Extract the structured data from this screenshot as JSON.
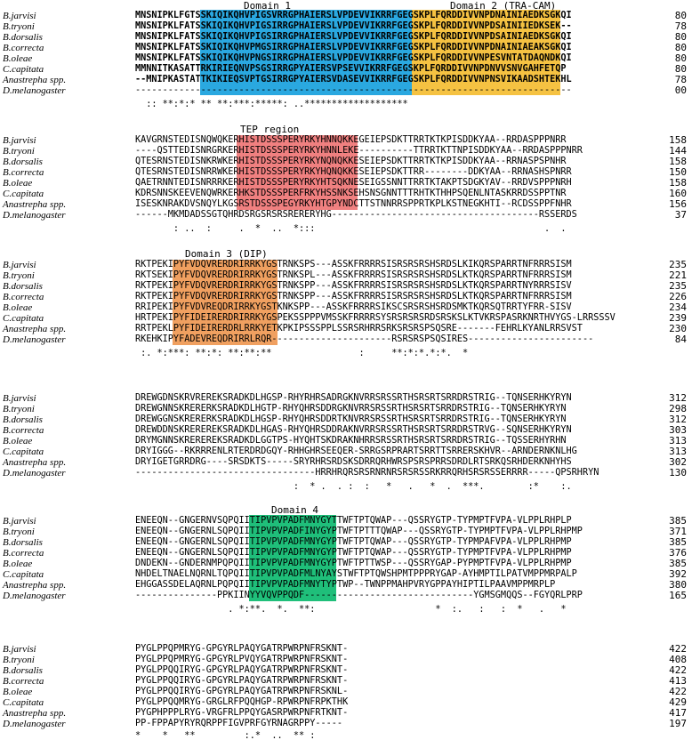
{
  "species": [
    "B.jarvisi",
    "B.tryoni",
    "B.dorsalis",
    "B.correcta",
    "B.oleae",
    "C.capitata",
    "Anastrepha spp.",
    "D.melanogaster"
  ],
  "colors": {
    "domain1": "#2aa8e0",
    "domain2": "#f5c242",
    "tep": "#f08080",
    "domain3": "#f0a060",
    "domain4": "#1fbf7a",
    "serine": "#e01010",
    "proline": "#1e6fd0"
  },
  "labels": {
    "domain1": "Domain 1",
    "domain2": "Domain 2 (TRA-CAM)",
    "tep": "TEP region",
    "domain3": "Domain 3 (DIP)",
    "domain4": "Domain 4"
  },
  "blocks": [
    {
      "rows": [
        {
          "seq": "MNSNIPKLFGTSSKIQIKQHVPIGSVRRGPHAIERSLVPDEVVIKRRFGEGSKPLFQRDDIVVNPDNAINIAEDKSGKQI",
          "num": "80"
        },
        {
          "seq": "MNSNIPKLFATSSKIQIKQHVPIGSIRRGPHAIERSLVPDEVVIKRRFGEGSKPLFQRDDIVVNPDSAINIIEDKSEK--",
          "num": "78"
        },
        {
          "seq": "MNSNIPKLFATSSKIQIKQHVPIGSIRRGPHAIERSLVPDEVVIKRRFGEGSKPLFQRDDIVVNPDSAINIAEDKSGKQI",
          "num": "80"
        },
        {
          "seq": "MNSNIPKLFATSSKIQIKQHVPMGSIRRGPHAIERSLVPDEVVIKRRFGEGSKPLFQRDDIVVNPDNAINIAEAKSGKQI",
          "num": "80"
        },
        {
          "seq": "MNSNIPKLFATSSKIQIKQHVPNGSIRRGPHAIERSLVPDEVVIKRRFGEGSKPLFQRDDIVVNPESVNTATDAQNDKQI",
          "num": "80"
        },
        {
          "seq": "MMNNITKASATTRKIRIEQNVPSGSIRRGPYAIERSVPSEVVIKRRFGEGSKPLFQRDDIVVNPDNVVSNVGAHFETQP",
          "num": "80"
        },
        {
          "seq": "--MNIPKASTATTKIKIEQSVPTGSIRRGPYAIERSVDASEVVIKRRFGEGSKPLFQRDDIVVNPNSVIKAADSHTEKHL",
          "num": "78"
        },
        {
          "seq": "--------------------------------------------------------------------------------",
          "num": "00"
        }
      ],
      "cons": "  :: **:*:* ** **:***:*****: ..*******************"
    },
    {
      "rows": [
        {
          "seq": "KAVGRNSTEDISNQWQKERHISTDSSSPERYRKYHNNQKKEGEIEPSDKTTRRTKTKPISDDKYAA--RRDASPPPNRR",
          "num": "158"
        },
        {
          "seq": "----QSTTEDISNRGRKERHISTDSSSPERYRKYHNNLEKE----------TTRRTKTTNPISDDKYAA--RRDASPPPNRR",
          "num": "144"
        },
        {
          "seq": "QTESRNSTEDISNKRWKERHISTDSSSPERYRKYNQNQKKESEIEPSDKTTRRTKTKPISDDKYAA--RRNASPSPNHR",
          "num": "158"
        },
        {
          "seq": "QTESRNSTEDISNRRWKERHISTDSSSPERYRKYHQNQKKESEIEPSDKTTRR--------DDKYAA--RRNASHSPNRR",
          "num": "150"
        },
        {
          "seq": "QAETRNNTEDISNRRRKERHISTDSSSPERYRKYHTSQKNESEIGSSNNTTRRTKTAKPTSDGKYAV--RRDVSPPPNRH",
          "num": "158"
        },
        {
          "seq": "KDRSNNSKEEVENQWRKERHKSTDSSSPERFRKYHSSNKSEHSNSGNNTTTRHTKTHHPSQENLNTASKRRDSSPPTNR",
          "num": "160"
        },
        {
          "seq": "ISESKNRAKDVSNQYLKGSRSTDSSSPEGYRKYHTGPYNDCTTSTNNRRSPPRTKPLKSTNEGKHTI--RCDSSPPFNHR",
          "num": "156"
        },
        {
          "seq": "------MKMDADSSGTQHRDSRGSRSRSRERERYHG--------------------------------------RSSERDS",
          "num": "37"
        }
      ],
      "cons": "       : ..  :     .  *  ..  *:::                                          .  ."
    },
    {
      "rows": [
        {
          "seq": "RKTPEKIPYFVDQVRERDRIRRKYGSTRNKSPS---ASSKFRRRRSISRSRSRSHSRDSLKIKQRSPARRTNFRRRSISM",
          "num": "235"
        },
        {
          "seq": "RKTSEKIPYFVDQVRERDRIRRKYGSTRNKSPL---ASSKFRRRRSISRSRSRSHSRDSLKTKQRSPARRTNFRRRSISM",
          "num": "221"
        },
        {
          "seq": "RKTPEKIPYFVDQVRERDRIRRKYGSTRNKSPP---ASSKFRRRRSISRSRSRSHSRDSLKTKQRSPARRTNYRRRSISV",
          "num": "235"
        },
        {
          "seq": "RKTPEKIPYFVDQVRERDRIRRKYGSTRNKSPP---ASSKFRRRRSISRSRSRSHSRDSLKTKQRSPARRTNFRRRSISM",
          "num": "226"
        },
        {
          "seq": "RRIPEKIPYFVDVREQDRIRRKYGSTKNKSPP---ASSKFRRRRSIKSCSRSRSHSRDSMKTKQRSQTRRTYFRR-SISV",
          "num": "234"
        },
        {
          "seq": "HRTPEKIPYFIDEIRERDRIRRKYGSPEKSSPPPVMSSKFRRRRSYSRSRSRSRDSRSKSLKTVKRSPASRKNRTHVYGS-LRRSSSV",
          "num": "239"
        },
        {
          "seq": "RRTPEKLPYFIDEIRERDRLRRKYETKPKIPSSSPPLSSRSRHRRSRKSRSRSPSQSRE-------FEHRLKYANLRRSVST",
          "num": "230"
        },
        {
          "seq": "RKEHKIPYFADEVREQDRIRRLRQR----------------------RSRSRSPSQSIRES-----------------------",
          "num": "84"
        }
      ],
      "cons": " :. *:***: **:*: **:**:**                :     **:*:*.*:*.  *"
    },
    {
      "rows": [
        {
          "seq": "DREWGDNSKRVREREKSRADKDLHGSP-RHYRHRSADRGKNVRRSRSSRTHSRSRTSRRDRSTRIG--TQNSERHKYRYN",
          "num": "312"
        },
        {
          "seq": "DREWGNNSKRERERKSRADKDLHGTP-RHYQHRSDDRGKNVRRSRSSRTHSRSRTSRRDRSTRIG--TQNSERHKYRYN",
          "num": "298"
        },
        {
          "seq": "DREWGGNSKRERERKSRADKDLHGSP-RHYQHRSDDRTKNVRRSRSSRTHSRSRTSRRDRSTRIG--TQNSERHKYRYN",
          "num": "312"
        },
        {
          "seq": "DREWDDNSKREREREKSRADKDLHGAS-RHYQHRSDDRAKNVRRSRSSRTHSRSRTSRRDRSTRVG--SQNSERHKYRYN",
          "num": "303"
        },
        {
          "seq": "DRYMGNNSKREREREKSRADKDLGGTPS-HYQHTSKDRAKNHRRSRSSRTHSRSRTSRRDRSTRIG--TQSSERHYRHN",
          "num": "313"
        },
        {
          "seq": "DRYIGGG--RKRRRENLRTERDRDGQY-RHHGHRSEEQER-SRRGSRPRARTSRRTTSRRERSKHVR--ARNDERNKNLHG",
          "num": "313"
        },
        {
          "seq": "DRYIGETGRRDRG----SRSDKTS-----SRYRHRSRDSKSDRRQRHWRSPSRSPRRSDRDLRTSRKQSRHDERKNHYHS",
          "num": "302"
        },
        {
          "seq": "---------------------------------HRRHRQRSRSRNRNRSRSRSSRKRRQRHSRSRSSERRRR-----QPSRHRYN",
          "num": "130"
        }
      ],
      "cons": "                             :  * .  . :  :   *   .   *  .  ***.        :*    :."
    },
    {
      "rows": [
        {
          "seq": "ENEEQN--GNGERNVSQPQIITIPVPVPADFMNYGYTTWFTPTQWAP---QSSRYGTP-TYPMPTFVPA-VLPPLRHPLP",
          "num": "385"
        },
        {
          "seq": "ENEEQN--GNGERNLSQPQIITIPVPVPADFINYGYPTWFTPTTTQWAP---QSSRYGTP-TYPMPTFVPA-VLPPLRHPMP",
          "num": "371"
        },
        {
          "seq": "ENEEQN--GNGERNLSQPQIITIPVPVPADFMNYGYPTWFTPTQWAP---QSSRYGTP-TYPMPAFVPA-VLPPLRHPMP",
          "num": "385"
        },
        {
          "seq": "ENEEQN--GNGERNLSQPQIITIPVPVPADFMNYGYPTWFTPTQWAP---QSSRYGTP-TYPMPTFVPA-VLPPLRHPMP",
          "num": "376"
        },
        {
          "seq": "DNDEKN--GNDERNMPQPQIITIPVPVPADFMNYGYPTWFTPTTWSP---QSSRYGAP-PYPMPTFVPA-VLPPLRHPMP",
          "num": "385"
        },
        {
          "seq": "NHDELTNAELNQRNLTQPQIITIPVPVPADFMLNYAYSTWFTPTQWSHPMTPPPRYGAP-AYHMPTILPATVMPPMRPALP",
          "num": "392"
        },
        {
          "seq": "EHGGASSDELAQRNLPQPQIITIPVPVPADFMNYTYPTWP--TWNPPMAHPVRYGPPAYHIPTILPAAVMPPMRPLP",
          "num": "380"
        },
        {
          "seq": "---------------PPKIINYYVQVPPQDF-------------------------------YGMSGMQQS--FGYQRLPRP",
          "num": "165"
        }
      ],
      "cons": "                 . *:**.  *.  **:                      *  :.   :   :  *   .   *"
    },
    {
      "rows": [
        {
          "seq": "PYGLPPQPMRYG-GPGYRLPAQYGATRPWRPNFRSKNT-",
          "num": "422"
        },
        {
          "seq": "PYGLPPQPMRYG-GPGYRLPVQYGATRPWRPNFRSKNT-",
          "num": "408"
        },
        {
          "seq": "PYGLPPQQIRYG-GPGYRLPAQYGATRPWRPNFRSKNT-",
          "num": "422"
        },
        {
          "seq": "PYGLPPQQIRYG-GPGYRLPAQYGATRPWRPNFRSKNT-",
          "num": "413"
        },
        {
          "seq": "PYGLPPQQIRYG-GPGYRLPAQYGATRPWRPNFRSKNL-",
          "num": "422"
        },
        {
          "seq": "PYGLPPQQMRYG-GRGLRFPQQHGP-RPWRPNFRPKTHK",
          "num": "429"
        },
        {
          "seq": "PYGPHPPPLRYG-VRGFRLPPQYGASRPWRPNFRTKNT-",
          "num": "417"
        },
        {
          "seq": "PP-FPPAPYRYRQRPPFIGVPRFGYRNAGRPPY-----",
          "num": "197"
        }
      ],
      "cons": "*    *   **         :.*  ..  ** :"
    }
  ]
}
